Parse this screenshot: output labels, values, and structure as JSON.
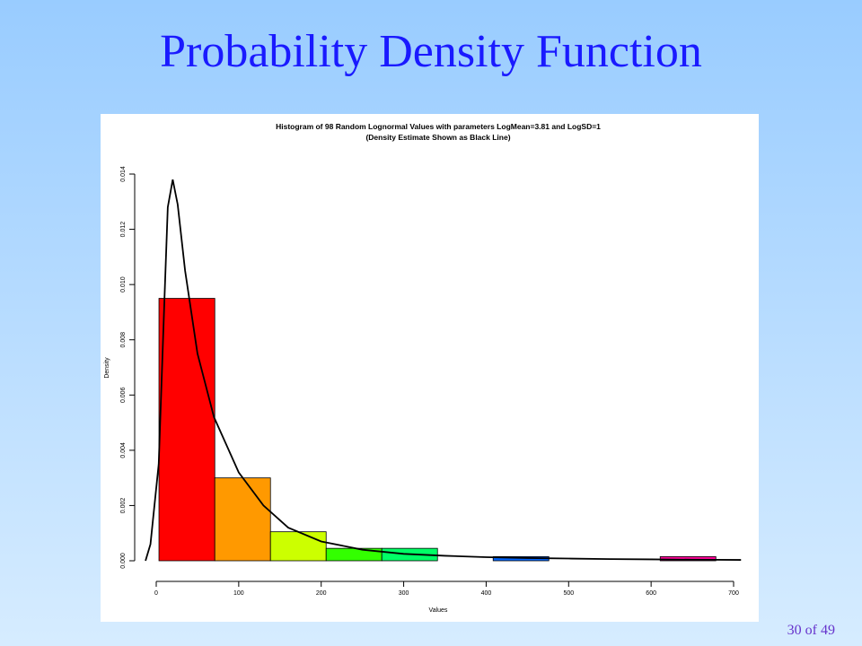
{
  "slide": {
    "title": "Probability Density Function",
    "page": "30 of 49"
  },
  "chart_data": {
    "type": "histogram",
    "title": "Histogram of 98 Random Lognormal Values with parameters LogMean=3.81 and LogSD=1",
    "subtitle": "(Density Estimate Shown as Black Line)",
    "x_label": "Values",
    "y_label": "Density",
    "bins": [
      3.3,
      71,
      138.5,
      206,
      273.5,
      341,
      408.5,
      476,
      543.5,
      611,
      678.5
    ],
    "values": [
      0.0095,
      0.003,
      0.00105,
      0.00045,
      0.00045,
      0,
      0.00015,
      0,
      0,
      0.00015
    ],
    "colors": [
      "#FF0000",
      "#FF9900",
      "#CCFF00",
      "#33FF00",
      "#00FF66",
      "#00FFFF",
      "#0066FF",
      "#3300FF",
      "#CC00FF",
      "#FF0099"
    ],
    "density": {
      "color": "#000000",
      "x": [
        -13,
        -7,
        3,
        10,
        14,
        20,
        26,
        35,
        50,
        70,
        100,
        130,
        160,
        200,
        250,
        300,
        350,
        400,
        450,
        500,
        550,
        600,
        650,
        709
      ],
      "y": [
        0,
        0.0006,
        0.0035,
        0.0095,
        0.0128,
        0.0138,
        0.0129,
        0.0105,
        0.0075,
        0.0052,
        0.0032,
        0.002,
        0.0012,
        0.0007,
        0.0004,
        0.00025,
        0.00018,
        0.00013,
        0.0001,
        8e-05,
        6e-05,
        5e-05,
        4e-05,
        3e-05
      ]
    },
    "xlim": [
      0,
      700
    ],
    "xticks": [
      0,
      100,
      200,
      300,
      400,
      500,
      600,
      700
    ],
    "ylim": [
      0,
      0.014
    ],
    "yticks": [
      {
        "value": 0,
        "label": "0.000"
      },
      {
        "value": 0.002,
        "label": "0.002"
      },
      {
        "value": 0.004,
        "label": "0.004"
      },
      {
        "value": 0.006,
        "label": "0.006"
      },
      {
        "value": 0.008,
        "label": "0.008"
      },
      {
        "value": 0.01,
        "label": "0.010"
      },
      {
        "value": 0.012,
        "label": "0.012"
      },
      {
        "value": 0.014,
        "label": "0.014"
      }
    ]
  }
}
